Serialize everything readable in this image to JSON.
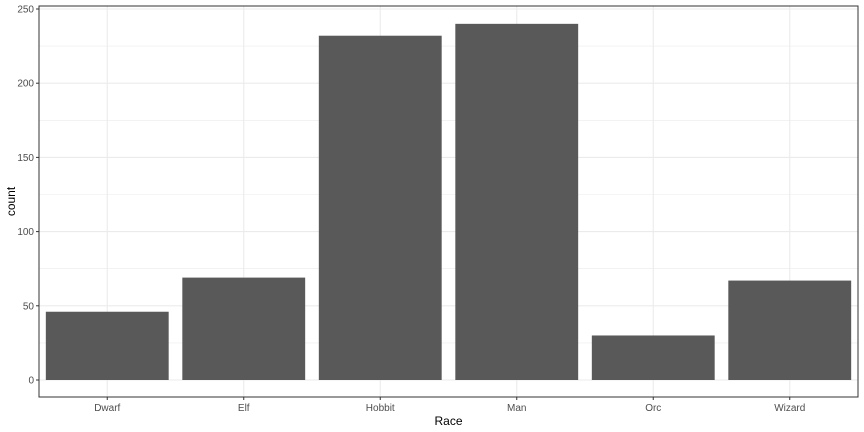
{
  "chart_data": {
    "type": "bar",
    "xlabel": "Race",
    "ylabel": "count",
    "categories": [
      "Dwarf",
      "Elf",
      "Hobbit",
      "Man",
      "Orc",
      "Wizard"
    ],
    "values": [
      46,
      69,
      232,
      240,
      30,
      67
    ],
    "ylim": [
      0,
      250
    ],
    "yticks": [
      0,
      50,
      100,
      150,
      200,
      250
    ],
    "grid": true,
    "legend": "none",
    "colors": {
      "bar": "#595959",
      "grid": "#ebebeb",
      "panel_border": "#333333",
      "tick_text": "#4d4d4d"
    }
  }
}
